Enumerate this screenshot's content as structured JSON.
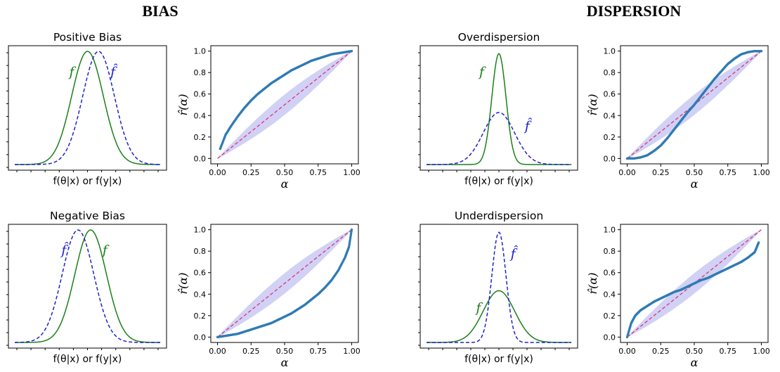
{
  "figure": {
    "headers": [
      "BIAS",
      "DISPERSION"
    ]
  },
  "colors": {
    "true_density": "#1a7f1a",
    "estimated_density": "#1f1fd1",
    "reference_line": "#dd3377",
    "band": "#ccccf5",
    "points": "#2f7bb5"
  },
  "chart_data": [
    {
      "type": "line",
      "title": "Positive Bias",
      "xlabel": "f(θ|x) or f(y|x)",
      "series": [
        {
          "name": "f",
          "style": "solid",
          "color": "#1a7f1a",
          "shape": "gaussian",
          "mean": 0.0,
          "sd": 1.0,
          "peak": 1.0
        },
        {
          "name": "f̂",
          "style": "dashed",
          "color": "#1f1fd1",
          "shape": "gaussian",
          "mean": 0.7,
          "sd": 1.0,
          "peak": 1.0
        }
      ],
      "xlim": [
        -5,
        5
      ],
      "ylim": [
        -0.05,
        1.05
      ]
    },
    {
      "type": "scatter",
      "xlabel": "α",
      "ylabel": "r̂(α)",
      "xlim": [
        0,
        1
      ],
      "ylim": [
        0,
        1
      ],
      "xticks": [
        "0.00",
        "0.25",
        "0.50",
        "0.75",
        "1.00"
      ],
      "yticks": [
        "0.0",
        "0.2",
        "0.4",
        "0.6",
        "0.8",
        "1.0"
      ],
      "series": [
        {
          "name": "r̂(α)",
          "x": [
            0.02,
            0.06,
            0.1,
            0.15,
            0.2,
            0.25,
            0.3,
            0.35,
            0.4,
            0.45,
            0.5,
            0.55,
            0.6,
            0.65,
            0.7,
            0.75,
            0.8,
            0.85,
            0.9,
            0.95,
            1.0
          ],
          "y": [
            0.09,
            0.22,
            0.3,
            0.39,
            0.47,
            0.54,
            0.6,
            0.65,
            0.7,
            0.74,
            0.78,
            0.82,
            0.85,
            0.88,
            0.91,
            0.93,
            0.95,
            0.97,
            0.98,
            0.99,
            1.0
          ]
        }
      ],
      "reference": "diagonal",
      "band": true
    },
    {
      "type": "line",
      "title": "Negative Bias",
      "xlabel": "f(θ|x) or f(y|x)",
      "series": [
        {
          "name": "f",
          "style": "solid",
          "color": "#1a7f1a",
          "shape": "gaussian",
          "mean": 0.2,
          "sd": 1.0,
          "peak": 1.0
        },
        {
          "name": "f̂",
          "style": "dashed",
          "color": "#1f1fd1",
          "shape": "gaussian",
          "mean": -0.6,
          "sd": 1.0,
          "peak": 1.0
        }
      ],
      "xlim": [
        -5,
        5
      ],
      "ylim": [
        -0.05,
        1.05
      ]
    },
    {
      "type": "scatter",
      "xlabel": "α",
      "ylabel": "r̂(α)",
      "xlim": [
        0,
        1
      ],
      "ylim": [
        0,
        1
      ],
      "xticks": [
        "0.00",
        "0.25",
        "0.50",
        "0.75",
        "1.00"
      ],
      "yticks": [
        "0.0",
        "0.2",
        "0.4",
        "0.6",
        "0.8",
        "1.0"
      ],
      "series": [
        {
          "name": "r̂(α)",
          "x": [
            0.0,
            0.05,
            0.1,
            0.15,
            0.2,
            0.25,
            0.3,
            0.35,
            0.4,
            0.45,
            0.5,
            0.55,
            0.6,
            0.65,
            0.7,
            0.75,
            0.8,
            0.85,
            0.9,
            0.95,
            0.98,
            1.0
          ],
          "y": [
            0.0,
            0.01,
            0.02,
            0.03,
            0.05,
            0.07,
            0.09,
            0.11,
            0.13,
            0.16,
            0.19,
            0.22,
            0.26,
            0.3,
            0.35,
            0.4,
            0.46,
            0.53,
            0.62,
            0.74,
            0.84,
            1.0
          ]
        }
      ],
      "reference": "diagonal",
      "band": true
    },
    {
      "type": "line",
      "title": "Overdispersion",
      "xlabel": "f(θ|x) or f(y|x)",
      "series": [
        {
          "name": "f",
          "style": "solid",
          "color": "#1a7f1a",
          "shape": "gaussian",
          "mean": 0.0,
          "sd": 0.45,
          "peak": 0.98
        },
        {
          "name": "f̂",
          "style": "dashed",
          "color": "#1f1fd1",
          "shape": "gaussian",
          "mean": 0.0,
          "sd": 1.0,
          "peak": 0.46
        }
      ],
      "xlim": [
        -5,
        5
      ],
      "ylim": [
        -0.05,
        1.05
      ]
    },
    {
      "type": "scatter",
      "xlabel": "α",
      "ylabel": "r̂(α)",
      "xlim": [
        0,
        1
      ],
      "ylim": [
        0,
        1
      ],
      "xticks": [
        "0.00",
        "0.25",
        "0.50",
        "0.75",
        "1.00"
      ],
      "yticks": [
        "0.0",
        "0.2",
        "0.4",
        "0.6",
        "0.8",
        "1.0"
      ],
      "series": [
        {
          "name": "r̂(α)",
          "x": [
            0.0,
            0.05,
            0.1,
            0.15,
            0.2,
            0.25,
            0.3,
            0.35,
            0.4,
            0.45,
            0.5,
            0.55,
            0.6,
            0.65,
            0.7,
            0.75,
            0.8,
            0.85,
            0.9,
            0.95,
            1.0
          ],
          "y": [
            0.0,
            0.0,
            0.01,
            0.03,
            0.07,
            0.12,
            0.19,
            0.27,
            0.35,
            0.43,
            0.5,
            0.58,
            0.66,
            0.74,
            0.81,
            0.88,
            0.93,
            0.97,
            0.99,
            1.0,
            1.0
          ]
        }
      ],
      "reference": "diagonal",
      "band": true
    },
    {
      "type": "line",
      "title": "Underdispersion",
      "xlabel": "f(θ|x) or f(y|x)",
      "series": [
        {
          "name": "f",
          "style": "solid",
          "color": "#1a7f1a",
          "shape": "gaussian",
          "mean": 0.0,
          "sd": 1.0,
          "peak": 0.46
        },
        {
          "name": "f̂",
          "style": "dashed",
          "color": "#1f1fd1",
          "shape": "gaussian",
          "mean": 0.0,
          "sd": 0.45,
          "peak": 0.98
        }
      ],
      "xlim": [
        -5,
        5
      ],
      "ylim": [
        -0.05,
        1.05
      ]
    },
    {
      "type": "scatter",
      "xlabel": "α",
      "ylabel": "r̂(α)",
      "xlim": [
        0,
        1
      ],
      "ylim": [
        0,
        1
      ],
      "xticks": [
        "0.00",
        "0.25",
        "0.50",
        "0.75",
        "1.00"
      ],
      "yticks": [
        "0.0",
        "0.2",
        "0.4",
        "0.6",
        "0.8",
        "1.0"
      ],
      "series": [
        {
          "name": "r̂(α)",
          "x": [
            0.0,
            0.03,
            0.06,
            0.1,
            0.15,
            0.2,
            0.25,
            0.3,
            0.35,
            0.4,
            0.45,
            0.5,
            0.55,
            0.6,
            0.65,
            0.7,
            0.75,
            0.8,
            0.85,
            0.9,
            0.95,
            0.98
          ],
          "y": [
            0.0,
            0.13,
            0.2,
            0.25,
            0.29,
            0.33,
            0.36,
            0.39,
            0.42,
            0.44,
            0.47,
            0.5,
            0.53,
            0.55,
            0.58,
            0.61,
            0.64,
            0.67,
            0.7,
            0.74,
            0.79,
            0.88
          ]
        }
      ],
      "reference": "diagonal",
      "band": true
    }
  ]
}
